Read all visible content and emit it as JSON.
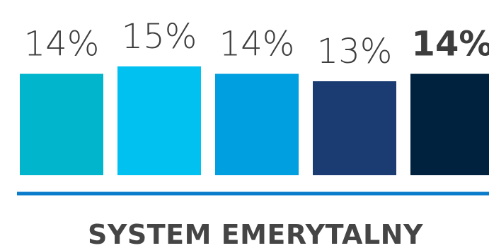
{
  "chart_data": {
    "type": "bar",
    "title": "SYSTEM EMERYTALNY",
    "categories": [
      "",
      "",
      "",
      "",
      ""
    ],
    "values": [
      14,
      15,
      14,
      13,
      14
    ],
    "value_labels": [
      "14%",
      "15%",
      "14%",
      "13%",
      "14%"
    ],
    "highlighted_index": 4,
    "colors": [
      "#00B5CC",
      "#00C1F0",
      "#00A0E0",
      "#1A3C73",
      "#00223F"
    ],
    "baseline_color": "#0B7CCB",
    "xlabel": "",
    "ylabel": "",
    "grid": false,
    "legend": "none"
  }
}
